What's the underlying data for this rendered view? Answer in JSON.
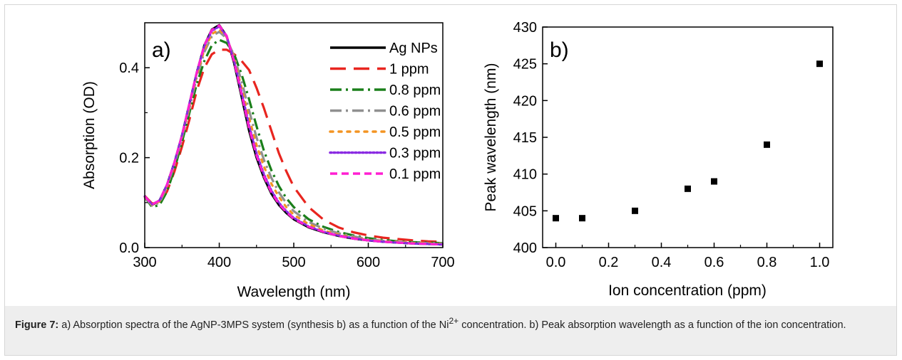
{
  "chart_data": [
    {
      "type": "line",
      "panel_label": "a)",
      "xlabel": "Wavelength (nm)",
      "ylabel": "Absorption (OD)",
      "xlim": [
        300,
        700
      ],
      "ylim": [
        0,
        0.5
      ],
      "xticks": [
        300,
        400,
        500,
        600,
        700
      ],
      "yticks": [
        0.0,
        0.2,
        0.4
      ],
      "ytick_labels": [
        "0.0",
        "0.2",
        "0.4"
      ],
      "legend_position": "top-right",
      "x": [
        300,
        310,
        320,
        330,
        340,
        350,
        360,
        370,
        380,
        390,
        400,
        410,
        420,
        430,
        440,
        450,
        460,
        470,
        480,
        490,
        500,
        520,
        540,
        560,
        580,
        600,
        620,
        640,
        660,
        680,
        700
      ],
      "series": [
        {
          "name": "Ag NPs",
          "color": "#000000",
          "dash": "solid",
          "values": [
            0.115,
            0.095,
            0.105,
            0.14,
            0.19,
            0.25,
            0.32,
            0.39,
            0.45,
            0.485,
            0.495,
            0.47,
            0.41,
            0.335,
            0.26,
            0.2,
            0.155,
            0.12,
            0.095,
            0.077,
            0.063,
            0.045,
            0.034,
            0.026,
            0.02,
            0.016,
            0.013,
            0.011,
            0.009,
            0.008,
            0.007
          ]
        },
        {
          "name": "1 ppm",
          "color": "#e8251f",
          "dash": "long-dash",
          "values": [
            0.115,
            0.098,
            0.1,
            0.125,
            0.17,
            0.225,
            0.285,
            0.35,
            0.4,
            0.43,
            0.44,
            0.44,
            0.43,
            0.415,
            0.395,
            0.355,
            0.31,
            0.26,
            0.21,
            0.17,
            0.135,
            0.09,
            0.062,
            0.045,
            0.034,
            0.027,
            0.022,
            0.019,
            0.016,
            0.014,
            0.013
          ]
        },
        {
          "name": "0.8 ppm",
          "color": "#1a7f1a",
          "dash": "dash-dot",
          "values": [
            0.112,
            0.09,
            0.095,
            0.125,
            0.175,
            0.235,
            0.3,
            0.365,
            0.415,
            0.45,
            0.462,
            0.455,
            0.43,
            0.385,
            0.33,
            0.27,
            0.215,
            0.172,
            0.137,
            0.11,
            0.09,
            0.063,
            0.046,
            0.035,
            0.027,
            0.021,
            0.017,
            0.014,
            0.012,
            0.011,
            0.01
          ]
        },
        {
          "name": "0.6 ppm",
          "color": "#909090",
          "dash": "dash-dot",
          "values": [
            0.112,
            0.093,
            0.1,
            0.135,
            0.185,
            0.245,
            0.31,
            0.38,
            0.435,
            0.47,
            0.48,
            0.465,
            0.425,
            0.37,
            0.305,
            0.245,
            0.195,
            0.155,
            0.123,
            0.099,
            0.081,
            0.057,
            0.042,
            0.032,
            0.025,
            0.019,
            0.015,
            0.013,
            0.011,
            0.01,
            0.009
          ]
        },
        {
          "name": "0.5 ppm",
          "color": "#f39422",
          "dash": "dot",
          "values": [
            0.113,
            0.095,
            0.103,
            0.138,
            0.188,
            0.248,
            0.315,
            0.385,
            0.44,
            0.475,
            0.485,
            0.468,
            0.42,
            0.355,
            0.288,
            0.228,
            0.18,
            0.142,
            0.113,
            0.09,
            0.073,
            0.052,
            0.038,
            0.029,
            0.022,
            0.017,
            0.014,
            0.012,
            0.01,
            0.009,
            0.008
          ]
        },
        {
          "name": "0.3 ppm",
          "color": "#8a2be2",
          "dash": "fine-dot",
          "values": [
            0.114,
            0.096,
            0.105,
            0.14,
            0.19,
            0.25,
            0.32,
            0.39,
            0.448,
            0.482,
            0.492,
            0.47,
            0.415,
            0.345,
            0.272,
            0.21,
            0.163,
            0.127,
            0.1,
            0.081,
            0.066,
            0.047,
            0.035,
            0.027,
            0.021,
            0.016,
            0.013,
            0.011,
            0.009,
            0.008,
            0.007
          ]
        },
        {
          "name": "0.1 ppm",
          "color": "#ff1fd2",
          "dash": "short-dash",
          "values": [
            0.114,
            0.096,
            0.105,
            0.14,
            0.19,
            0.25,
            0.32,
            0.39,
            0.45,
            0.484,
            0.494,
            0.471,
            0.413,
            0.34,
            0.266,
            0.205,
            0.158,
            0.123,
            0.097,
            0.079,
            0.064,
            0.046,
            0.035,
            0.026,
            0.02,
            0.016,
            0.013,
            0.011,
            0.009,
            0.008,
            0.007
          ]
        }
      ]
    },
    {
      "type": "scatter",
      "panel_label": "b)",
      "xlabel": "Ion concentration (ppm)",
      "ylabel": "Peak wavelength (nm)",
      "xlim": [
        -0.05,
        1.05
      ],
      "ylim": [
        400,
        430
      ],
      "xticks": [
        0.0,
        0.2,
        0.4,
        0.6,
        0.8,
        1.0
      ],
      "xtick_labels": [
        "0.0",
        "0.2",
        "0.4",
        "0.6",
        "0.8",
        "1.0"
      ],
      "yticks": [
        400,
        405,
        410,
        415,
        420,
        425,
        430
      ],
      "marker": "square",
      "color": "#000000",
      "x": [
        0.0,
        0.1,
        0.3,
        0.5,
        0.6,
        0.8,
        1.0
      ],
      "y": [
        404,
        404,
        405,
        408,
        409,
        414,
        425
      ]
    }
  ],
  "caption": {
    "lead": "Figure 7:",
    "text_1": " a) Absorption spectra of the AgNP-3MPS system (synthesis b) as a function of the Ni",
    "superscript": "2+",
    "text_2": " concentration. b) Peak absorption wavelength as a function of the ion concentration."
  }
}
